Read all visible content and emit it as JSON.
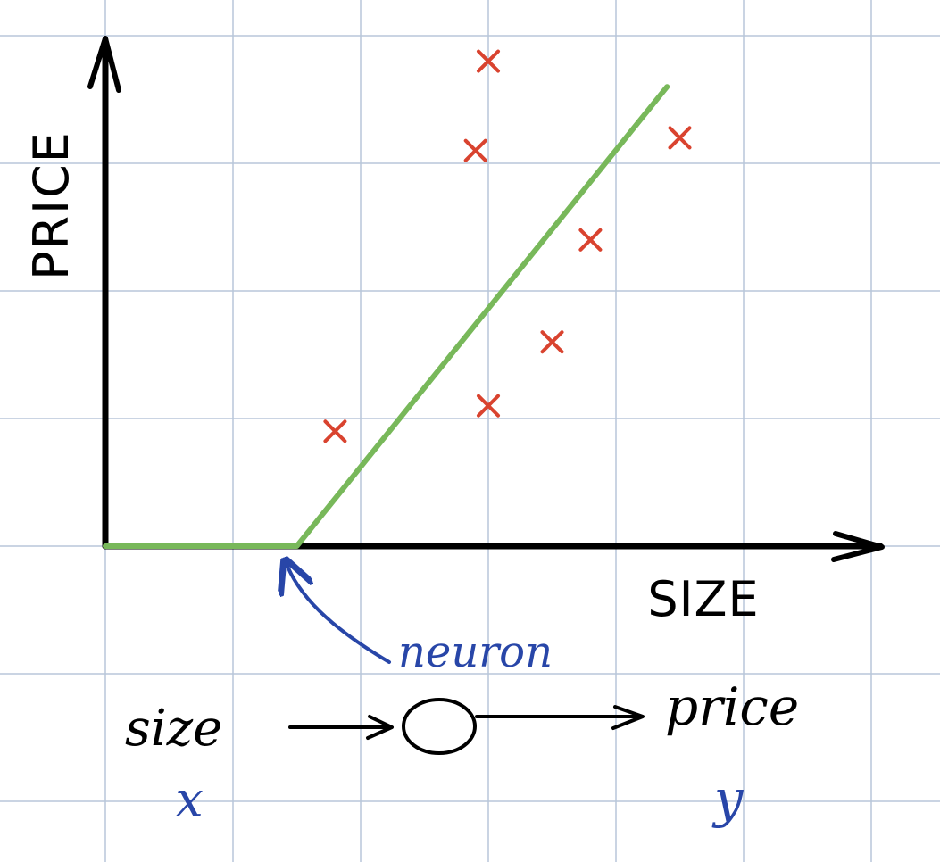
{
  "colors": {
    "grid": "#b8c6da",
    "ink": "#000000",
    "fit_line": "#78b85a",
    "points": "#d9432f",
    "annotation": "#2846a8"
  },
  "axes": {
    "y_label": "PRICE",
    "x_label": "SIZE"
  },
  "annotation": {
    "label": "neuron"
  },
  "network": {
    "input_label": "size",
    "output_label": "price",
    "input_symbol": "x",
    "output_symbol": "y"
  },
  "chart_data": {
    "type": "scatter",
    "grid": true,
    "points": [
      {
        "x": 1.8,
        "y": 0.9
      },
      {
        "x": 2.9,
        "y": 3.1
      },
      {
        "x": 3.0,
        "y": 3.8
      },
      {
        "x": 3.0,
        "y": 1.1
      },
      {
        "x": 3.5,
        "y": 1.6
      },
      {
        "x": 3.8,
        "y": 2.4
      },
      {
        "x": 4.5,
        "y": 3.2
      }
    ],
    "fit": {
      "type": "relu",
      "points": [
        {
          "x": 0.0,
          "y": 0.0
        },
        {
          "x": 1.5,
          "y": 0.0
        },
        {
          "x": 4.4,
          "y": 3.6
        }
      ]
    }
  }
}
